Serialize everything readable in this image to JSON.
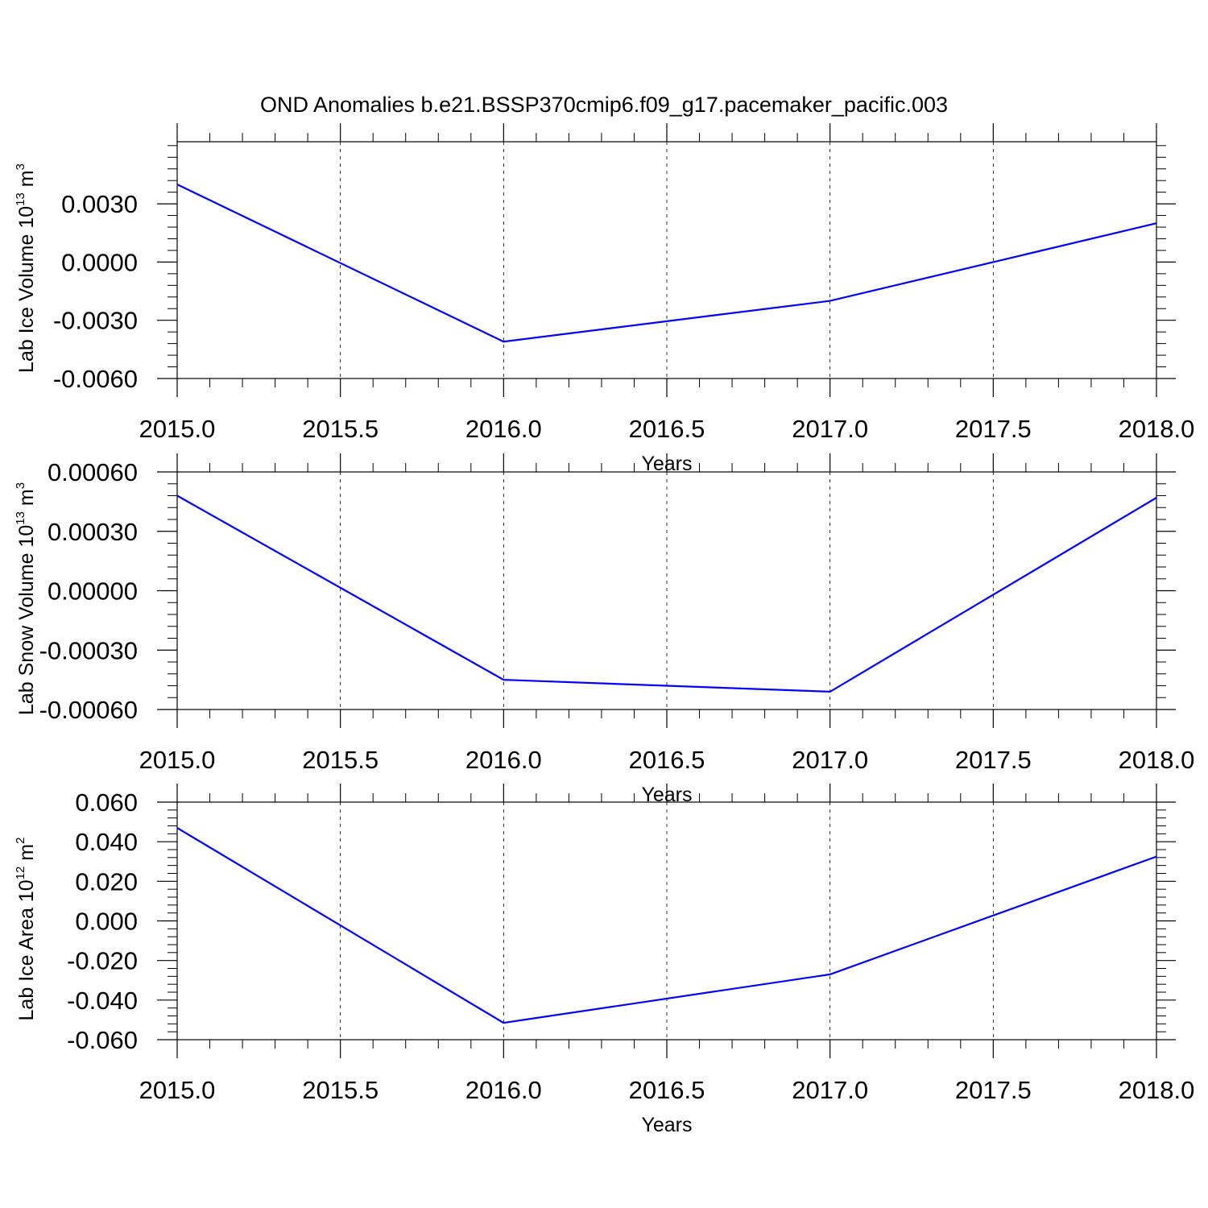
{
  "title": "OND Anomalies b.e21.BSSP370cmip6.f09_g17.pacemaker_pacific.003",
  "colors": {
    "series": "#0000ff",
    "axis": "#000000",
    "grid": "#000000"
  },
  "chart_data": [
    {
      "type": "line",
      "xlabel": "Years",
      "ylabel": {
        "text": "Lab Ice Volume 10",
        "exp": "13",
        "unit_text": " m",
        "unit_exp": "3"
      },
      "xlim": [
        2015.0,
        2018.0
      ],
      "ylim": [
        -0.006,
        0.0062
      ],
      "xticks": [
        "2015.0",
        "2015.5",
        "2016.0",
        "2016.5",
        "2017.0",
        "2017.5",
        "2018.0"
      ],
      "yticks": [
        "0.0030",
        "0.0000",
        "-0.0030",
        "-0.0060"
      ],
      "ytick_values": [
        0.003,
        0.0,
        -0.003,
        -0.006
      ],
      "x": [
        2015,
        2016,
        2017,
        2018
      ],
      "y": [
        0.004,
        -0.0041,
        -0.002,
        0.002
      ]
    },
    {
      "type": "line",
      "xlabel": "Years",
      "ylabel": {
        "text": "Lab Snow Volume 10",
        "exp": "13",
        "unit_text": " m",
        "unit_exp": "3"
      },
      "xlim": [
        2015.0,
        2018.0
      ],
      "ylim": [
        -0.0006,
        0.0006
      ],
      "xticks": [
        "2015.0",
        "2015.5",
        "2016.0",
        "2016.5",
        "2017.0",
        "2017.5",
        "2018.0"
      ],
      "yticks": [
        "0.00060",
        "0.00030",
        "0.00000",
        "-0.00030",
        "-0.00060"
      ],
      "ytick_values": [
        0.0006,
        0.0003,
        0.0,
        -0.0003,
        -0.0006
      ],
      "x": [
        2015,
        2016,
        2017,
        2018
      ],
      "y": [
        0.00048,
        -0.00045,
        -0.00051,
        0.00047
      ]
    },
    {
      "type": "line",
      "xlabel": "Years",
      "ylabel": {
        "text": "Lab Ice Area 10",
        "exp": "12",
        "unit_text": " m",
        "unit_exp": "2"
      },
      "xlim": [
        2015.0,
        2018.0
      ],
      "ylim": [
        -0.06,
        0.06
      ],
      "xticks": [
        "2015.0",
        "2015.5",
        "2016.0",
        "2016.5",
        "2017.0",
        "2017.5",
        "2018.0"
      ],
      "yticks": [
        "0.060",
        "0.040",
        "0.020",
        "0.000",
        "-0.020",
        "-0.040",
        "-0.060"
      ],
      "ytick_values": [
        0.06,
        0.04,
        0.02,
        0.0,
        -0.02,
        -0.04,
        -0.06
      ],
      "x": [
        2015,
        2016,
        2017,
        2018
      ],
      "y": [
        0.047,
        -0.0515,
        -0.027,
        0.0325
      ]
    }
  ]
}
